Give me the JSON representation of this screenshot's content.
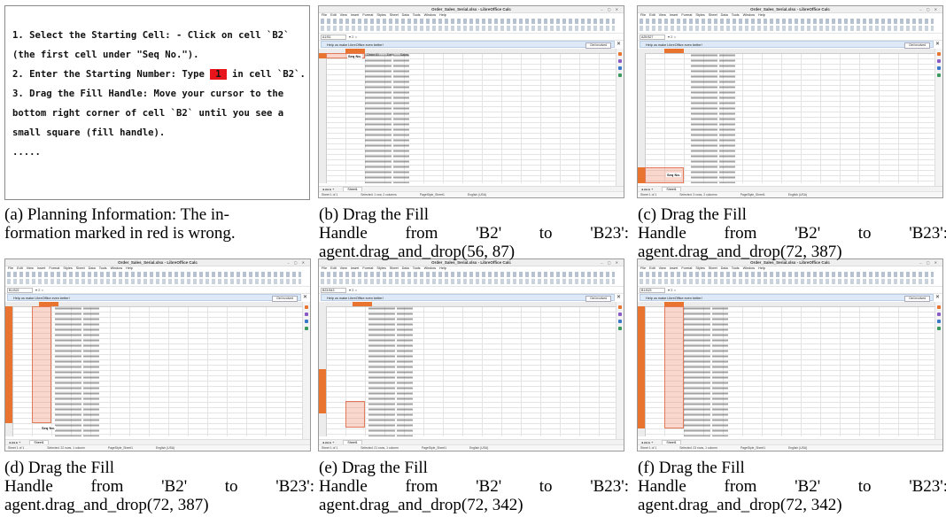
{
  "plan": {
    "line1": "1. Select the Starting Cell: - Click on cell `B2`",
    "line2": "(the first cell under \"Seq No.\").",
    "line3_pre": "2. Enter the Starting Number: Type ",
    "line3_value": "1",
    "line3_post": " in cell `B2`.",
    "line4": "3. Drag the Fill Handle: Move your cursor to the",
    "line5": "bottom right corner of cell `B2` until you see a",
    "line6": "small square (fill handle).",
    "line7": "....."
  },
  "app": {
    "window_title": "Order_Sales_Serial.xlsx - LibreOffice Calc",
    "menu": [
      "File",
      "Edit",
      "View",
      "Insert",
      "Format",
      "Styles",
      "Sheet",
      "Data",
      "Tools",
      "Window",
      "Help"
    ],
    "info_bar": "Help us make LibreOffice even better!",
    "info_button": "Get involved",
    "sheet_tab": "Sheet1",
    "seq_label": "Seq No.",
    "col_headers": [
      "A",
      "B",
      "C",
      "D",
      "E",
      "F",
      "G",
      "H",
      "I",
      "J",
      "K",
      "L",
      "M",
      "N"
    ],
    "order_header": "Order ID",
    "date_header": "Date",
    "sales_header": "Sales",
    "status_sheet": "Sheet 1 of 1",
    "status_locale": "English (USA)",
    "status_style": "PageStyle_Sheet1"
  },
  "shots": {
    "b": {
      "name_box": "A1:B1",
      "selection": "Selected: 1 row, 2 columns"
    },
    "c": {
      "name_box": "A25:B27",
      "selection": "Selected: 3 rows, 2 columns"
    },
    "d": {
      "name_box": "B1:B22",
      "selection": "Selected: 22 rows, 1 column"
    },
    "e": {
      "name_box": "B23:B43",
      "selection": "Selected: 21 rows, 1 column"
    },
    "f": {
      "name_box": "B1:B23",
      "selection": "Selected: 23 rows, 1 column"
    }
  },
  "captions": {
    "a": {
      "label": "(a) Planning Information: The in-",
      "line2": "formation marked in red is wrong."
    },
    "b": {
      "label": "(b) Drag the Fill",
      "w1": "Handle",
      "w2": "from",
      "w3": "'B2'",
      "w4": "to",
      "w5": "'B23':",
      "action": "agent.drag_and_drop(56, 87)"
    },
    "c": {
      "label": "(c) Drag the Fill",
      "w1": "Handle",
      "w2": "from",
      "w3": "'B2'",
      "w4": "to",
      "w5": "'B23':",
      "action": "agent.drag_and_drop(72, 387)"
    },
    "d": {
      "label": "(d) Drag the Fill",
      "w1": "Handle",
      "w2": "from",
      "w3": "'B2'",
      "w4": "to",
      "w5": "'B23':",
      "action": "agent.drag_and_drop(72, 387)"
    },
    "e": {
      "label": "(e) Drag the Fill",
      "w1": "Handle",
      "w2": "from",
      "w3": "'B2'",
      "w4": "to",
      "w5": "'B23':",
      "action": "agent.drag_and_drop(72, 342)"
    },
    "f": {
      "label": "(f) Drag the Fill",
      "w1": "Handle",
      "w2": "from",
      "w3": "'B2'",
      "w4": "to",
      "w5": "'B23':",
      "action": "agent.drag_and_drop(72, 342)"
    }
  },
  "colors": {
    "highlight_red": "#e8141c",
    "selection_orange": "#e8742f",
    "info_blue": "#dde9f7"
  }
}
